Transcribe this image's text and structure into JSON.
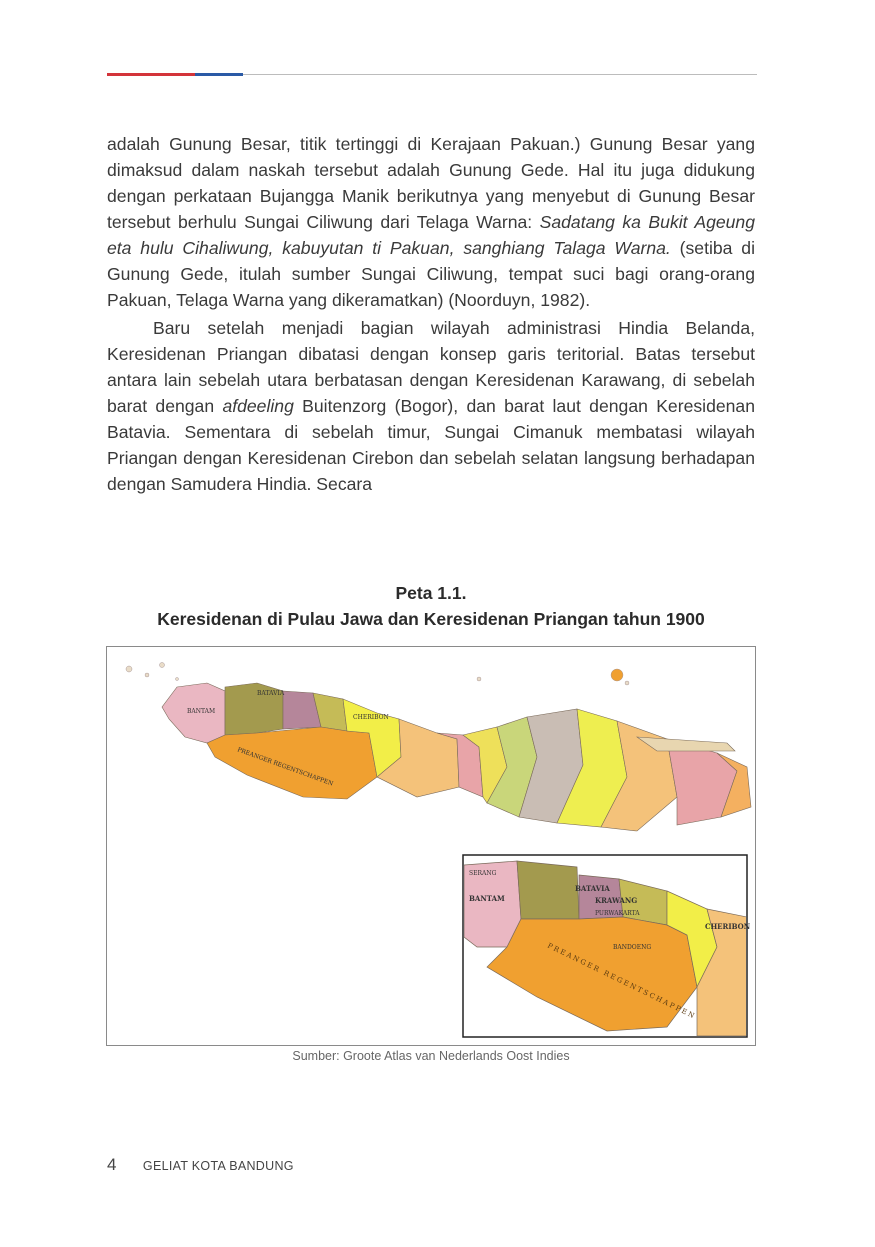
{
  "body": {
    "p1_a": "adalah Gunung Besar, titik tertinggi di Kerajaan Pakuan.) Gunung Besar yang dimaksud dalam naskah tersebut adalah Gunung Gede. Hal itu juga didukung dengan perkataan Bujangga Manik berikutnya yang menyebut di Gunung Besar tersebut berhulu Sungai Ciliwung dari Telaga Warna: ",
    "p1_italic": "Sadatang ka Bukit Ageung eta hulu Cihaliwung, kabuyutan ti Pakuan, sanghiang Talaga Warna.",
    "p1_b": " (setiba di Gunung Gede, itulah sumber Sungai Ciliwung, tempat suci bagi orang-orang Pakuan, Telaga Warna yang dikeramatkan) (Noorduyn, 1982).",
    "p2_a": "Baru setelah menjadi bagian wilayah administrasi Hindia Belanda, Keresidenan Priangan dibatasi dengan konsep garis teritorial. Batas tersebut antara lain sebelah utara berbatasan dengan Keresidenan Karawang, di sebelah barat dengan ",
    "p2_italic": "afdeeling",
    "p2_b": " Buitenzorg (Bogor), dan barat laut dengan Keresidenan Batavia. Sementara di sebelah timur, Sungai Cimanuk membatasi wilayah Priangan dengan Keresidenan Cirebon dan sebelah selatan langsung berhadapan dengan Samudera Hindia. Secara"
  },
  "figure": {
    "number": "Peta 1.1.",
    "title": "Keresidenan di Pulau Jawa dan Keresidenan Priangan tahun 1900",
    "source": "Sumber: Groote Atlas van Nederlands Oost Indies",
    "map_labels": {
      "bantam": "BANTAM",
      "batavia": "BATAVIA",
      "krawang": "KRAWANG",
      "purwakarta": "PURWAKARTA",
      "cheribon": "CHERIBON",
      "bandoeng": "BANDOENG",
      "serang": "SERANG",
      "preanger": "PREANGER REGENTSCHAPPEN"
    },
    "colors": {
      "preanger": "#f0a030",
      "bantam": "#eab7c2",
      "batavia": "#a39a4e",
      "krawang": "#b5869a",
      "cheribon": "#f2ee48",
      "east": "#f4c27a"
    }
  },
  "footer": {
    "page_number": "4",
    "book_title": "GELIAT KOTA BANDUNG"
  }
}
